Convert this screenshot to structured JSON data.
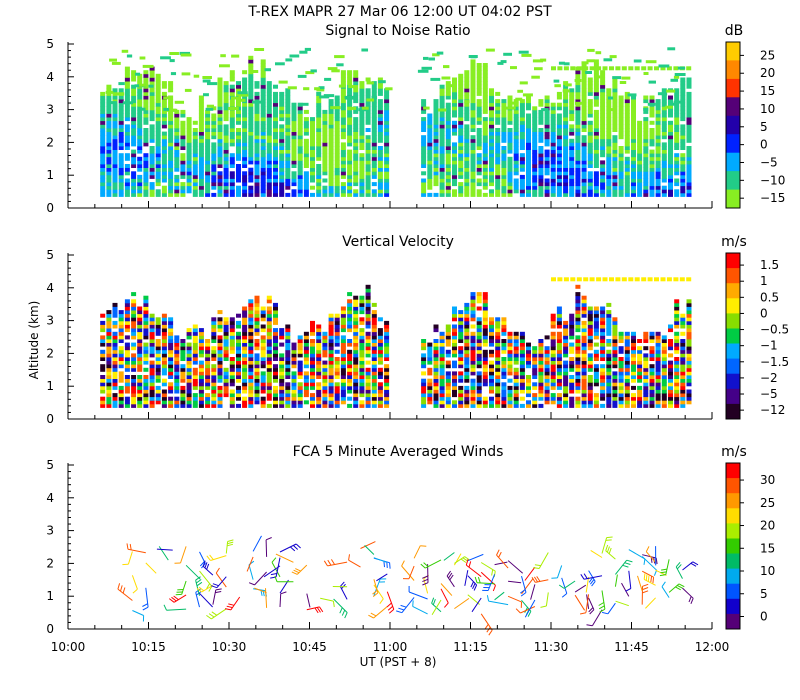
{
  "figure": {
    "main_title": "T-REX   MAPR 27 Mar 06   12:00 UT   04:02   PST",
    "ylabel": "Altitude (km)",
    "xlabel": "UT  (PST + 8)",
    "x_ticks": [
      "10:00",
      "10:15",
      "10:30",
      "10:45",
      "11:00",
      "11:15",
      "11:30",
      "11:45",
      "12:00"
    ],
    "y_ticks": [
      "0",
      "1",
      "2",
      "3",
      "4",
      "5"
    ]
  },
  "chart_data": [
    {
      "type": "heatmap",
      "title": "Signal to Noise Ratio",
      "xlim_minutes_ut": [
        600,
        720
      ],
      "ylim_km": [
        0,
        5
      ],
      "data_gap_minutes_ut": [
        660,
        665
      ],
      "colorbar": {
        "unit": "dB",
        "ticks": [
          "25",
          "20",
          "15",
          "10",
          "5",
          "0",
          "−5",
          "−10",
          "−15"
        ],
        "colors": [
          "#ffcc00",
          "#ff8800",
          "#ff3300",
          "#550077",
          "#2200aa",
          "#0022ff",
          "#00aaff",
          "#22cc88",
          "#88ee22"
        ]
      }
    },
    {
      "type": "heatmap",
      "title": "Vertical Velocity",
      "xlim_minutes_ut": [
        600,
        720
      ],
      "ylim_km": [
        0,
        5
      ],
      "data_gap_minutes_ut": [
        660,
        665
      ],
      "colorbar": {
        "unit": "m/s",
        "ticks": [
          "1.5",
          "1",
          "0.5",
          "0",
          "−0.5",
          "−1",
          "−1.5",
          "−2",
          "−5",
          "−12"
        ],
        "colors": [
          "#ff0000",
          "#ff5500",
          "#ffaa00",
          "#ffee00",
          "#88dd00",
          "#00cc44",
          "#00aaff",
          "#0066ff",
          "#1111cc",
          "#440088",
          "#220022"
        ]
      }
    },
    {
      "type": "wind_barbs",
      "title": "FCA 5 Minute Averaged Winds",
      "xlim_minutes_ut": [
        600,
        720
      ],
      "ylim_km": [
        0,
        5
      ],
      "colorbar": {
        "unit": "m/s",
        "ticks": [
          "30",
          "25",
          "20",
          "15",
          "10",
          "5",
          "0"
        ],
        "colors": [
          "#ff0000",
          "#ff5500",
          "#ff9900",
          "#ffdd00",
          "#aaee00",
          "#33cc00",
          "#00bb66",
          "#00aaee",
          "#0055ff",
          "#1100cc",
          "#550077"
        ]
      }
    }
  ]
}
